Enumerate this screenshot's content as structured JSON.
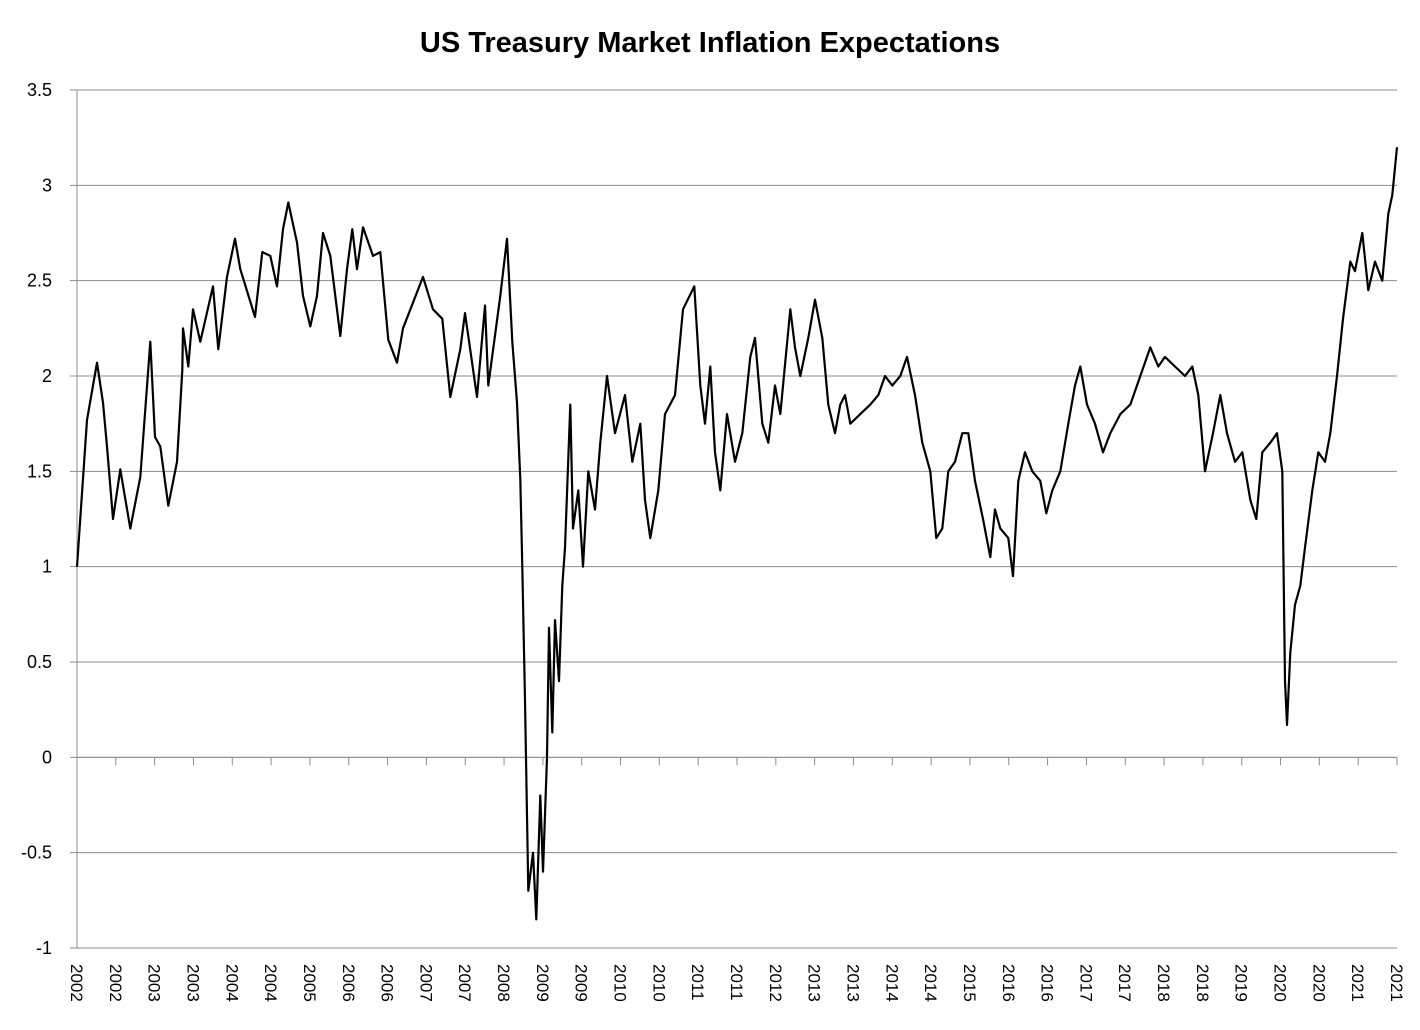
{
  "chart_data": {
    "type": "line",
    "title": "US Treasury Market Inflation Expectations",
    "xlabel": "",
    "ylabel": "",
    "ylim": [
      -1,
      3.5
    ],
    "xlim": [
      2002.0,
      2021.8
    ],
    "y_ticks": [
      "3.5",
      "3",
      "2.5",
      "2",
      "1.5",
      "1",
      "0.5",
      "0",
      "-0.5",
      "-1"
    ],
    "y_tick_values": [
      3.5,
      3,
      2.5,
      2,
      1.5,
      1,
      0.5,
      0,
      -0.5,
      -1
    ],
    "x_tick_labels": [
      "2002",
      "2002",
      "2003",
      "2003",
      "2004",
      "2004",
      "2005",
      "2006",
      "2006",
      "2007",
      "2007",
      "2008",
      "2009",
      "2009",
      "2010",
      "2010",
      "2011",
      "2011",
      "2012",
      "2013",
      "2013",
      "2014",
      "2014",
      "2015",
      "2016",
      "2016",
      "2017",
      "2017",
      "2018",
      "2018",
      "2019",
      "2020",
      "2020",
      "2021",
      "2021"
    ],
    "grid": true,
    "legend": "none",
    "line_color": "#000000",
    "grid_color": "#8c8c8c",
    "series": [
      {
        "points": [
          [
            2002.0,
            1.0
          ],
          [
            2002.15,
            1.77
          ],
          [
            2002.3,
            2.07
          ],
          [
            2002.39,
            1.86
          ],
          [
            2002.45,
            1.63
          ],
          [
            2002.54,
            1.25
          ],
          [
            2002.65,
            1.51
          ],
          [
            2002.8,
            1.2
          ],
          [
            2002.95,
            1.47
          ],
          [
            2003.1,
            2.18
          ],
          [
            2003.17,
            1.68
          ],
          [
            2003.25,
            1.63
          ],
          [
            2003.37,
            1.32
          ],
          [
            2003.5,
            1.55
          ],
          [
            2003.58,
            2.03
          ],
          [
            2003.59,
            2.25
          ],
          [
            2003.67,
            2.05
          ],
          [
            2003.74,
            2.35
          ],
          [
            2003.85,
            2.18
          ],
          [
            2004.04,
            2.47
          ],
          [
            2004.12,
            2.14
          ],
          [
            2004.25,
            2.52
          ],
          [
            2004.37,
            2.72
          ],
          [
            2004.45,
            2.56
          ],
          [
            2004.67,
            2.31
          ],
          [
            2004.78,
            2.65
          ],
          [
            2004.9,
            2.63
          ],
          [
            2005.0,
            2.47
          ],
          [
            2005.09,
            2.77
          ],
          [
            2005.17,
            2.91
          ],
          [
            2005.3,
            2.7
          ],
          [
            2005.39,
            2.42
          ],
          [
            2005.5,
            2.26
          ],
          [
            2005.6,
            2.42
          ],
          [
            2005.69,
            2.75
          ],
          [
            2005.8,
            2.63
          ],
          [
            2005.95,
            2.21
          ],
          [
            2006.05,
            2.56
          ],
          [
            2006.13,
            2.77
          ],
          [
            2006.2,
            2.56
          ],
          [
            2006.29,
            2.78
          ],
          [
            2006.44,
            2.63
          ],
          [
            2006.55,
            2.65
          ],
          [
            2006.67,
            2.19
          ],
          [
            2006.8,
            2.07
          ],
          [
            2006.89,
            2.25
          ],
          [
            2007.19,
            2.52
          ],
          [
            2007.34,
            2.35
          ],
          [
            2007.48,
            2.3
          ],
          [
            2007.6,
            1.89
          ],
          [
            2007.75,
            2.14
          ],
          [
            2007.82,
            2.33
          ],
          [
            2008.0,
            1.89
          ],
          [
            2008.12,
            2.37
          ],
          [
            2008.17,
            1.95
          ],
          [
            2008.35,
            2.42
          ],
          [
            2008.45,
            2.72
          ],
          [
            2008.53,
            2.18
          ],
          [
            2008.6,
            1.86
          ],
          [
            2008.65,
            1.46
          ],
          [
            2008.68,
            1.0
          ],
          [
            2008.72,
            0.3
          ],
          [
            2008.77,
            -0.7
          ],
          [
            2008.84,
            -0.5
          ],
          [
            2008.89,
            -0.85
          ],
          [
            2008.95,
            -0.2
          ],
          [
            2008.99,
            -0.6
          ],
          [
            2009.05,
            0.0
          ],
          [
            2009.08,
            0.68
          ],
          [
            2009.13,
            0.13
          ],
          [
            2009.17,
            0.72
          ],
          [
            2009.23,
            0.4
          ],
          [
            2009.28,
            0.9
          ],
          [
            2009.32,
            1.1
          ],
          [
            2009.4,
            1.85
          ],
          [
            2009.44,
            1.2
          ],
          [
            2009.52,
            1.4
          ],
          [
            2009.59,
            1.0
          ],
          [
            2009.67,
            1.5
          ],
          [
            2009.77,
            1.3
          ],
          [
            2009.85,
            1.65
          ],
          [
            2009.95,
            2.0
          ],
          [
            2010.07,
            1.7
          ],
          [
            2010.22,
            1.9
          ],
          [
            2010.33,
            1.55
          ],
          [
            2010.45,
            1.75
          ],
          [
            2010.52,
            1.35
          ],
          [
            2010.6,
            1.15
          ],
          [
            2010.72,
            1.4
          ],
          [
            2010.82,
            1.8
          ],
          [
            2010.97,
            1.9
          ],
          [
            2011.09,
            2.35
          ],
          [
            2011.26,
            2.47
          ],
          [
            2011.35,
            1.95
          ],
          [
            2011.42,
            1.75
          ],
          [
            2011.5,
            2.05
          ],
          [
            2011.57,
            1.6
          ],
          [
            2011.65,
            1.4
          ],
          [
            2011.75,
            1.8
          ],
          [
            2011.87,
            1.55
          ],
          [
            2011.98,
            1.7
          ],
          [
            2012.1,
            2.1
          ],
          [
            2012.17,
            2.2
          ],
          [
            2012.28,
            1.75
          ],
          [
            2012.37,
            1.65
          ],
          [
            2012.47,
            1.95
          ],
          [
            2012.55,
            1.8
          ],
          [
            2012.7,
            2.35
          ],
          [
            2012.77,
            2.15
          ],
          [
            2012.85,
            2.0
          ],
          [
            2012.97,
            2.2
          ],
          [
            2013.07,
            2.4
          ],
          [
            2013.18,
            2.2
          ],
          [
            2013.27,
            1.85
          ],
          [
            2013.37,
            1.7
          ],
          [
            2013.45,
            1.85
          ],
          [
            2013.52,
            1.9
          ],
          [
            2013.6,
            1.75
          ],
          [
            2013.75,
            1.8
          ],
          [
            2013.9,
            1.85
          ],
          [
            2014.02,
            1.9
          ],
          [
            2014.12,
            2.0
          ],
          [
            2014.23,
            1.95
          ],
          [
            2014.35,
            2.0
          ],
          [
            2014.45,
            2.1
          ],
          [
            2014.57,
            1.9
          ],
          [
            2014.68,
            1.65
          ],
          [
            2014.8,
            1.5
          ],
          [
            2014.89,
            1.15
          ],
          [
            2014.98,
            1.2
          ],
          [
            2015.07,
            1.5
          ],
          [
            2015.17,
            1.55
          ],
          [
            2015.28,
            1.7
          ],
          [
            2015.37,
            1.7
          ],
          [
            2015.47,
            1.45
          ],
          [
            2015.59,
            1.25
          ],
          [
            2015.7,
            1.05
          ],
          [
            2015.77,
            1.3
          ],
          [
            2015.85,
            1.2
          ],
          [
            2015.97,
            1.15
          ],
          [
            2016.04,
            0.95
          ],
          [
            2016.12,
            1.45
          ],
          [
            2016.22,
            1.6
          ],
          [
            2016.33,
            1.5
          ],
          [
            2016.45,
            1.45
          ],
          [
            2016.54,
            1.28
          ],
          [
            2016.63,
            1.4
          ],
          [
            2016.75,
            1.5
          ],
          [
            2016.87,
            1.75
          ],
          [
            2016.97,
            1.95
          ],
          [
            2017.05,
            2.05
          ],
          [
            2017.15,
            1.85
          ],
          [
            2017.27,
            1.75
          ],
          [
            2017.39,
            1.6
          ],
          [
            2017.5,
            1.7
          ],
          [
            2017.65,
            1.8
          ],
          [
            2017.8,
            1.85
          ],
          [
            2017.95,
            2.0
          ],
          [
            2018.1,
            2.15
          ],
          [
            2018.22,
            2.05
          ],
          [
            2018.32,
            2.1
          ],
          [
            2018.47,
            2.05
          ],
          [
            2018.62,
            2.0
          ],
          [
            2018.73,
            2.05
          ],
          [
            2018.82,
            1.9
          ],
          [
            2018.92,
            1.5
          ],
          [
            2019.04,
            1.7
          ],
          [
            2019.15,
            1.9
          ],
          [
            2019.25,
            1.7
          ],
          [
            2019.37,
            1.55
          ],
          [
            2019.48,
            1.6
          ],
          [
            2019.6,
            1.35
          ],
          [
            2019.69,
            1.25
          ],
          [
            2019.78,
            1.6
          ],
          [
            2019.9,
            1.65
          ],
          [
            2020.0,
            1.7
          ],
          [
            2020.08,
            1.5
          ],
          [
            2020.12,
            0.4
          ],
          [
            2020.15,
            0.17
          ],
          [
            2020.2,
            0.55
          ],
          [
            2020.27,
            0.8
          ],
          [
            2020.35,
            0.9
          ],
          [
            2020.42,
            1.1
          ],
          [
            2020.53,
            1.4
          ],
          [
            2020.62,
            1.6
          ],
          [
            2020.72,
            1.55
          ],
          [
            2020.8,
            1.7
          ],
          [
            2020.9,
            2.0
          ],
          [
            2020.99,
            2.3
          ],
          [
            2021.1,
            2.6
          ],
          [
            2021.17,
            2.55
          ],
          [
            2021.28,
            2.75
          ],
          [
            2021.37,
            2.45
          ],
          [
            2021.47,
            2.6
          ],
          [
            2021.58,
            2.5
          ],
          [
            2021.67,
            2.85
          ],
          [
            2021.73,
            2.95
          ],
          [
            2021.8,
            3.2
          ]
        ]
      }
    ]
  }
}
